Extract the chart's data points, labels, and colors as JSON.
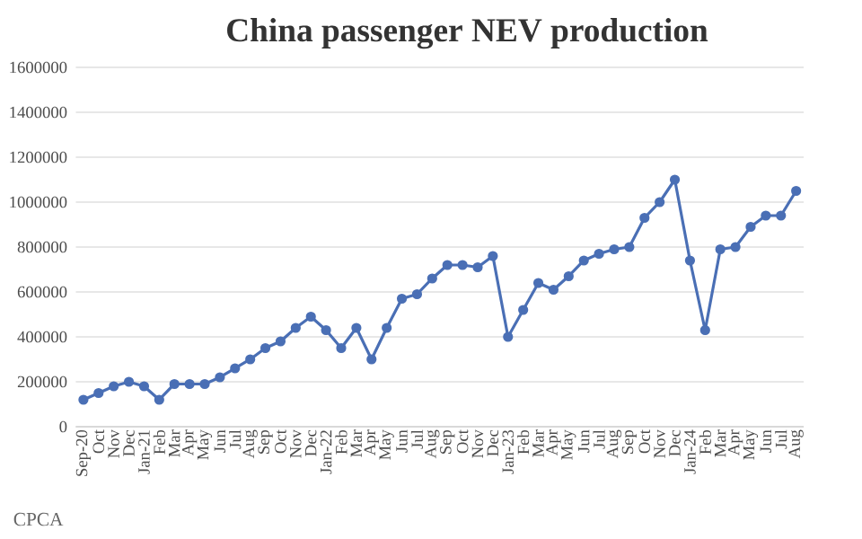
{
  "chart_data": {
    "type": "line",
    "title": "China passenger NEV production",
    "categories": [
      "Sep-20",
      "Oct",
      "Nov",
      "Dec",
      "Jan-21",
      "Feb",
      "Mar",
      "Apr",
      "May",
      "Jun",
      "Jul",
      "Aug",
      "Sep",
      "Oct",
      "Nov",
      "Dec",
      "Jan-22",
      "Feb",
      "Mar",
      "Apr",
      "May",
      "Jun",
      "Jul",
      "Aug",
      "Sep",
      "Oct",
      "Nov",
      "Dec",
      "Jan-23",
      "Feb",
      "Mar",
      "Apr",
      "May",
      "Jun",
      "Jul",
      "Aug",
      "Sep",
      "Oct",
      "Nov",
      "Dec",
      "Jan-24",
      "Feb",
      "Mar",
      "Apr",
      "May",
      "Jun",
      "Jul",
      "Aug"
    ],
    "series": [
      {
        "color": "#4a6fb5",
        "values": [
          120000,
          150000,
          180000,
          200000,
          180000,
          120000,
          190000,
          190000,
          190000,
          220000,
          260000,
          300000,
          350000,
          380000,
          440000,
          490000,
          430000,
          350000,
          440000,
          300000,
          440000,
          570000,
          590000,
          660000,
          720000,
          720000,
          710000,
          760000,
          400000,
          520000,
          640000,
          610000,
          670000,
          740000,
          770000,
          790000,
          800000,
          930000,
          1000000,
          1100000,
          740000,
          430000,
          790000,
          800000,
          890000,
          940000,
          940000,
          1050000
        ]
      }
    ],
    "ylim": [
      0,
      1600000
    ],
    "yticks": [
      0,
      200000,
      400000,
      600000,
      800000,
      1000000,
      1200000,
      1400000,
      1600000
    ],
    "grid": "y",
    "marker": "circle",
    "line_style": "solid",
    "annotations": [
      "CPCA"
    ]
  }
}
